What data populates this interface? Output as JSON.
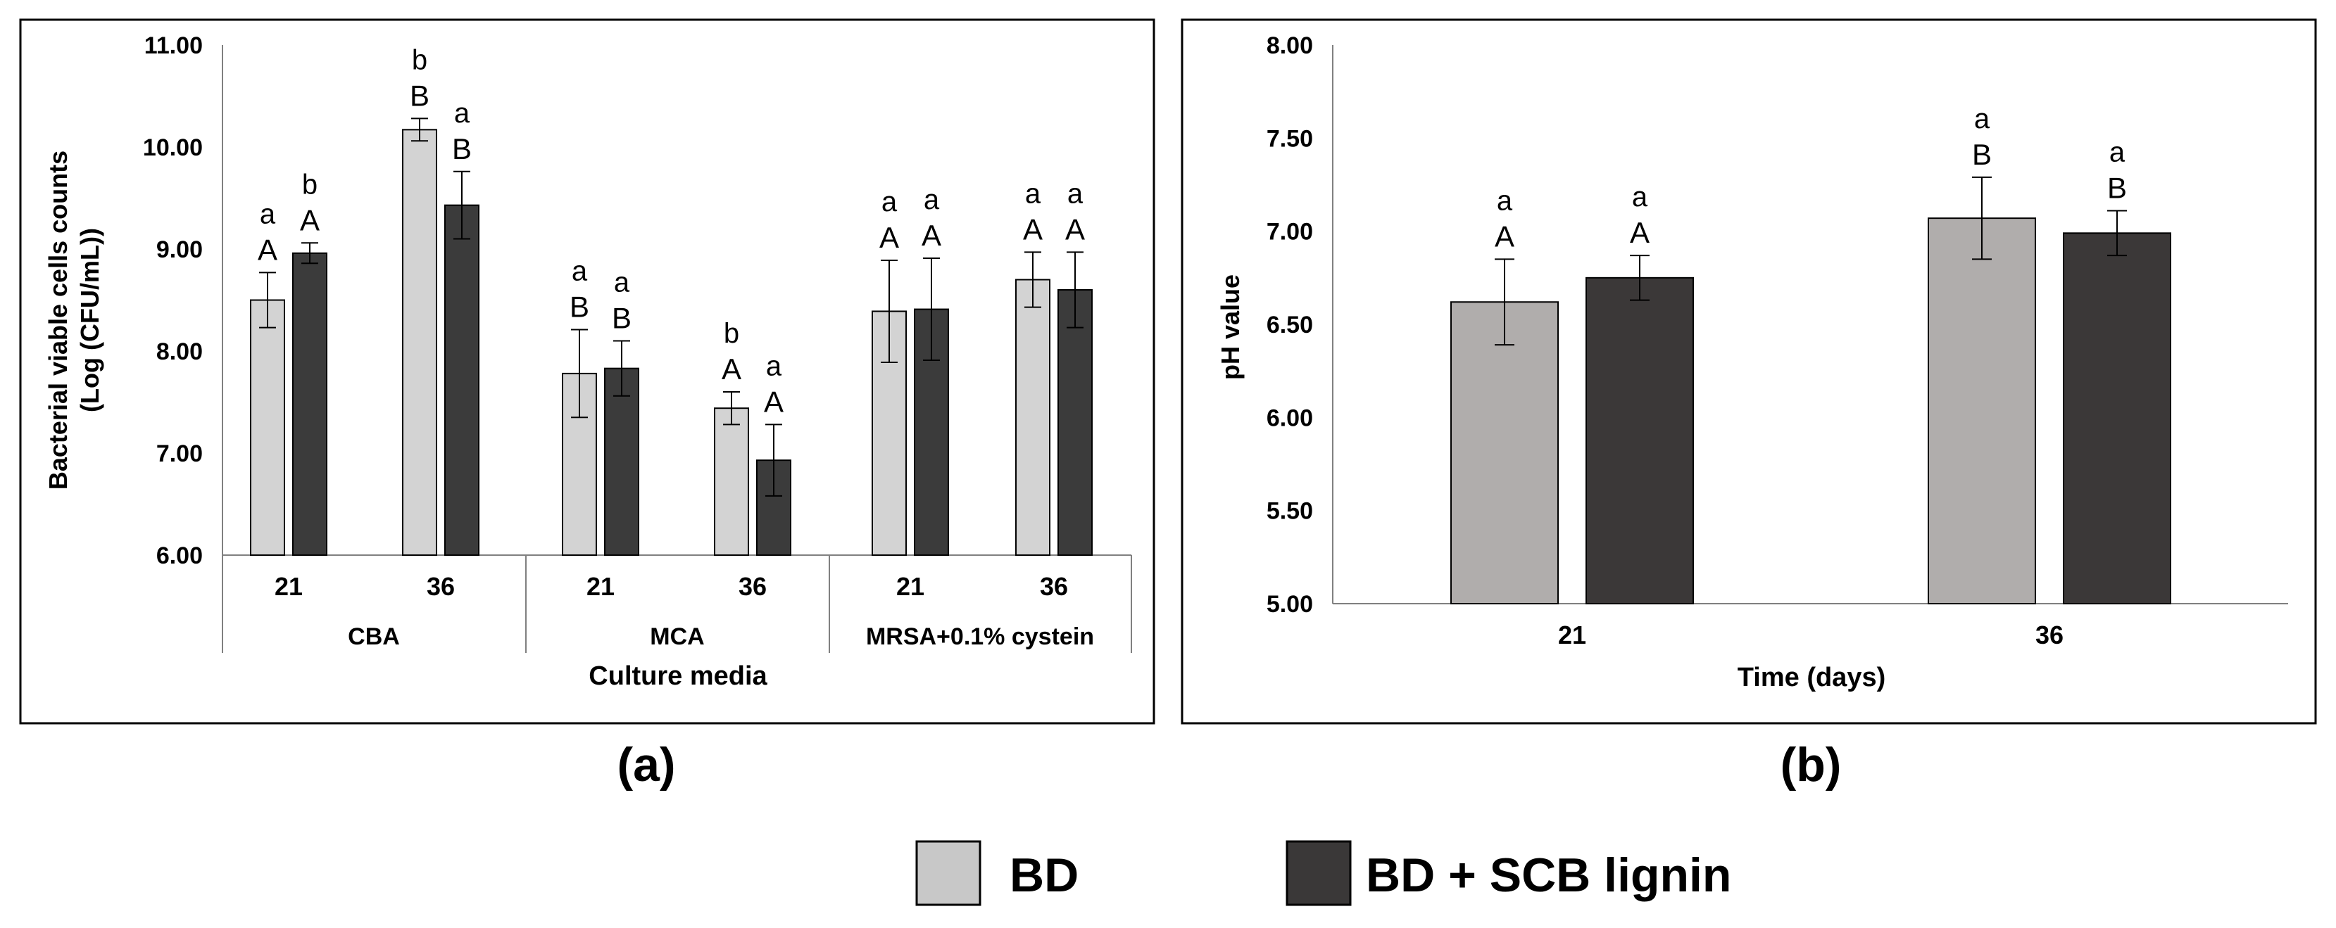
{
  "panels": {
    "a_label": "(a)",
    "b_label": "(b)"
  },
  "legend": [
    {
      "label": "BD",
      "color": "#c8c8c8"
    },
    {
      "label": "BD + SCB lignin",
      "color": "#3a3838"
    }
  ],
  "colors": {
    "bd_a": "#d3d3d3",
    "lignin_a": "#3b3b3b",
    "bd_b": "#b0adac",
    "lignin_b": "#3b3838",
    "axis": "#808080",
    "frame": "#000000"
  },
  "chart_data": [
    {
      "id": "a",
      "type": "bar",
      "ylabel_line1": "Bacterial  viable cells counts",
      "ylabel_line2": "(Log (CFU/mL))",
      "xlabel": "Culture media",
      "ylim": [
        6.0,
        11.0
      ],
      "yticks": [
        "6.00",
        "7.00",
        "8.00",
        "9.00",
        "10.00",
        "11.00"
      ],
      "groups": [
        "CBA",
        "MCA",
        "MRSA+0.1%  cystein"
      ],
      "categories": [
        "21",
        "36",
        "21",
        "36",
        "21",
        "36"
      ],
      "series": [
        {
          "name": "BD",
          "values": [
            8.5,
            10.17,
            7.78,
            7.44,
            8.39,
            8.7
          ],
          "errors": [
            0.27,
            0.11,
            0.43,
            0.16,
            0.5,
            0.27
          ],
          "upper_letters": [
            "a",
            "b",
            "a",
            "b",
            "a",
            "a"
          ],
          "lower_letters": [
            "A",
            "B",
            "B",
            "A",
            "A",
            "A"
          ]
        },
        {
          "name": "BD + SCB lignin",
          "values": [
            8.96,
            9.43,
            7.83,
            6.93,
            8.41,
            8.6
          ],
          "errors": [
            0.1,
            0.33,
            0.27,
            0.35,
            0.5,
            0.37
          ],
          "upper_letters": [
            "b",
            "a",
            "a",
            "a",
            "a",
            "a"
          ],
          "lower_letters": [
            "A",
            "B",
            "B",
            "A",
            "A",
            "A"
          ]
        }
      ]
    },
    {
      "id": "b",
      "type": "bar",
      "ylabel": "pH value",
      "xlabel": "Time (days)",
      "ylim": [
        5.0,
        8.0
      ],
      "yticks": [
        "5.00",
        "5.50",
        "6.00",
        "6.50",
        "7.00",
        "7.50",
        "8.00"
      ],
      "categories": [
        "21",
        "36"
      ],
      "series": [
        {
          "name": "BD",
          "values": [
            6.62,
            7.07
          ],
          "errors": [
            0.23,
            0.22
          ],
          "upper_letters": [
            "a",
            "a"
          ],
          "lower_letters": [
            "A",
            "B"
          ]
        },
        {
          "name": "BD + SCB lignin",
          "values": [
            6.75,
            6.99
          ],
          "errors": [
            0.12,
            0.12
          ],
          "upper_letters": [
            "a",
            "a"
          ],
          "lower_letters": [
            "A",
            "B"
          ]
        }
      ]
    }
  ]
}
